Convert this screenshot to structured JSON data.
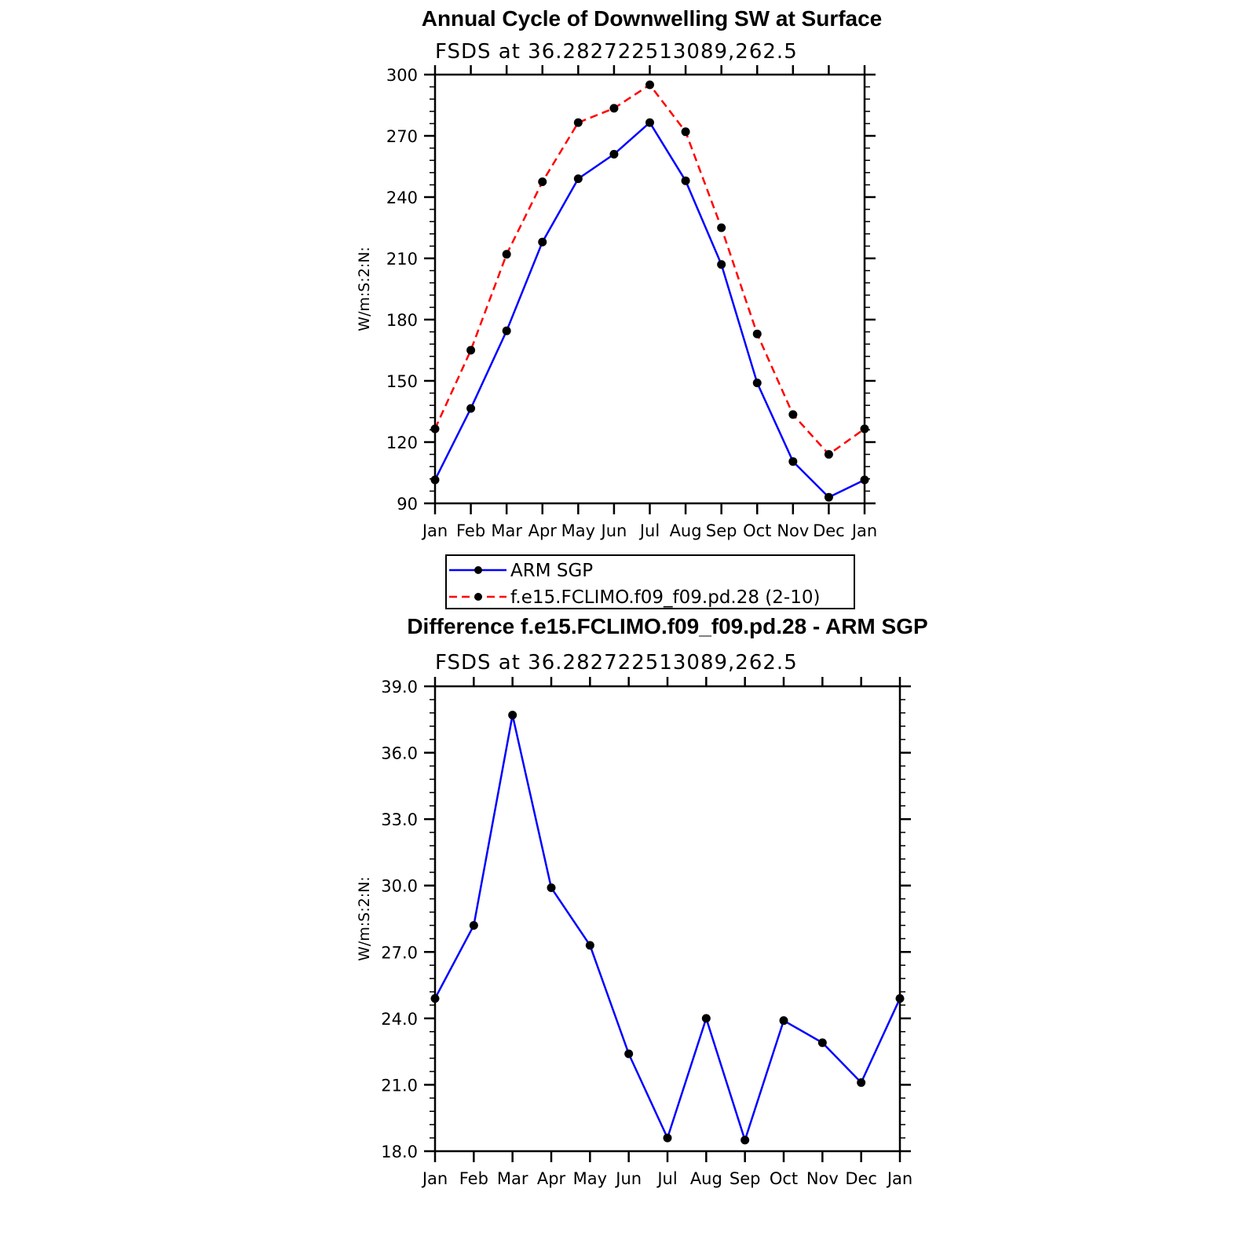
{
  "chart_data": [
    {
      "type": "line",
      "title": "Annual Cycle of Downwelling SW at Surface",
      "subtitle": "FSDS at 36.282722513089,262.5",
      "ylabel": "W/m:S:2:N:",
      "xlabel": "",
      "categories": [
        "Jan",
        "Feb",
        "Mar",
        "Apr",
        "May",
        "Jun",
        "Jul",
        "Aug",
        "Sep",
        "Oct",
        "Nov",
        "Dec",
        "Jan"
      ],
      "ylim": [
        90,
        300
      ],
      "yticks": [
        "90",
        "120",
        "150",
        "180",
        "210",
        "240",
        "270",
        "300"
      ],
      "series": [
        {
          "name": "ARM SGP",
          "color": "#0000ff",
          "dash": "solid",
          "values": [
            101.5,
            136.5,
            174.5,
            218,
            249,
            261,
            276.5,
            248,
            207,
            149,
            110.5,
            93,
            101.5
          ]
        },
        {
          "name": "f.e15.FCLIMO.f09_f09.pd.28 (2-10)",
          "color": "#ff0000",
          "dash": "dashed",
          "values": [
            126.5,
            165,
            212,
            247.5,
            276.5,
            283.5,
            295,
            272,
            225,
            173,
            133.5,
            114,
            126.5
          ]
        }
      ],
      "legend": "below"
    },
    {
      "type": "line",
      "title": "Difference f.e15.FCLIMO.f09_f09.pd.28 - ARM SGP",
      "subtitle": "FSDS at 36.282722513089,262.5",
      "ylabel": "W/m:S:2:N:",
      "xlabel": "",
      "categories": [
        "Jan",
        "Feb",
        "Mar",
        "Apr",
        "May",
        "Jun",
        "Jul",
        "Aug",
        "Sep",
        "Oct",
        "Nov",
        "Dec",
        "Jan"
      ],
      "ylim": [
        18,
        39
      ],
      "yticks": [
        "18.0",
        "21.0",
        "24.0",
        "27.0",
        "30.0",
        "33.0",
        "36.0",
        "39.0"
      ],
      "series": [
        {
          "color": "#0000ff",
          "dash": "solid",
          "values": [
            24.9,
            28.2,
            37.7,
            29.9,
            27.3,
            22.4,
            18.6,
            24.0,
            18.5,
            23.9,
            22.9,
            21.1,
            24.9
          ]
        }
      ]
    }
  ]
}
